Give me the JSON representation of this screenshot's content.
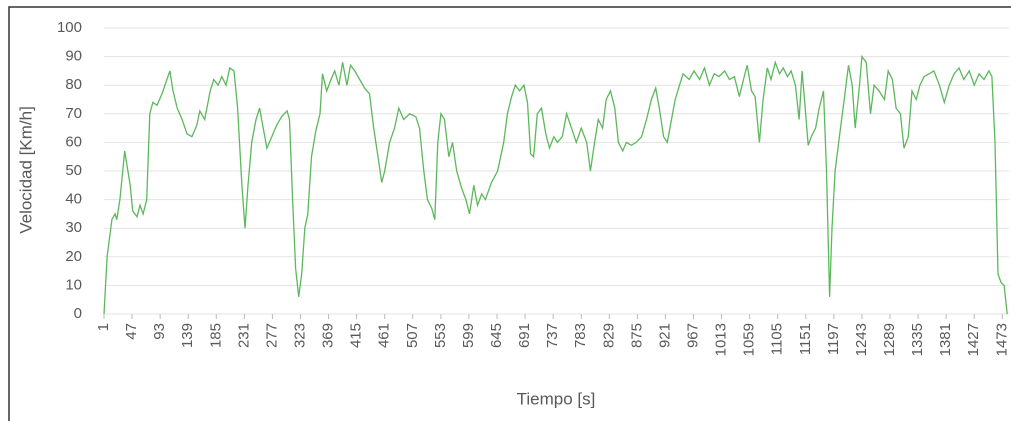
{
  "chart_data": {
    "type": "line",
    "xlabel": "Tiempo [s]",
    "ylabel": "Velocidad [Km/h]",
    "series": [
      {
        "name": "Velocidad",
        "color": "#5cb85c",
        "x": [
          1,
          6,
          14,
          19,
          22,
          27,
          35,
          44,
          48,
          55,
          60,
          65,
          71,
          76,
          81,
          88,
          96,
          104,
          109,
          114,
          121,
          129,
          137,
          145,
          153,
          158,
          166,
          175,
          181,
          188,
          194,
          201,
          207,
          214,
          220,
          227,
          232,
          237,
          243,
          250,
          256,
          261,
          268,
          276,
          284,
          292,
          301,
          305,
          310,
          315,
          320,
          325,
          330,
          335,
          341,
          348,
          355,
          359,
          366,
          373,
          379,
          386,
          392,
          399,
          405,
          412,
          420,
          428,
          436,
          443,
          450,
          456,
          461,
          469,
          477,
          484,
          492,
          502,
          512,
          518,
          525,
          531,
          538,
          543,
          548,
          553,
          559,
          566,
          572,
          579,
          587,
          594,
          600,
          607,
          613,
          620,
          626,
          636,
          646,
          656,
          662,
          669,
          675,
          682,
          689,
          695,
          700,
          705,
          711,
          718,
          725,
          731,
          738,
          744,
          752,
          759,
          767,
          775,
          783,
          792,
          798,
          805,
          811,
          818,
          824,
          831,
          838,
          844,
          851,
          857,
          865,
          873,
          882,
          890,
          898,
          905,
          911,
          918,
          924,
          931,
          937,
          944,
          950,
          960,
          968,
          977,
          985,
          993,
          1001,
          1009,
          1018,
          1026,
          1034,
          1042,
          1049,
          1055,
          1062,
          1068,
          1075,
          1081,
          1088,
          1094,
          1101,
          1108,
          1114,
          1121,
          1127,
          1134,
          1140,
          1145,
          1150,
          1155,
          1160,
          1167,
          1173,
          1180,
          1185,
          1190,
          1194,
          1199,
          1206,
          1214,
          1221,
          1227,
          1232,
          1239,
          1243,
          1250,
          1257,
          1263,
          1271,
          1280,
          1286,
          1293,
          1299,
          1306,
          1312,
          1319,
          1325,
          1332,
          1338,
          1345,
          1353,
          1361,
          1370,
          1378,
          1386,
          1394,
          1402,
          1410,
          1419,
          1427,
          1435,
          1443,
          1451,
          1456,
          1461,
          1466,
          1471,
          1476,
          1481
        ],
        "values": [
          0,
          20,
          33,
          35,
          33,
          40,
          57,
          45,
          36,
          34,
          38,
          35,
          40,
          70,
          74,
          73,
          77,
          82,
          85,
          78,
          72,
          68,
          63,
          62,
          66,
          71,
          68,
          78,
          82,
          80,
          83,
          80,
          86,
          85,
          72,
          45,
          30,
          45,
          60,
          68,
          72,
          66,
          58,
          62,
          66,
          69,
          71,
          68,
          40,
          16,
          6,
          14,
          30,
          35,
          55,
          64,
          70,
          84,
          78,
          82,
          85,
          80,
          88,
          80,
          87,
          85,
          82,
          79,
          77,
          65,
          55,
          46,
          50,
          60,
          65,
          72,
          68,
          70,
          69,
          65,
          50,
          40,
          37,
          33,
          60,
          70,
          68,
          55,
          60,
          50,
          44,
          40,
          35,
          45,
          38,
          42,
          40,
          46,
          50,
          60,
          70,
          76,
          80,
          78,
          80,
          74,
          56,
          55,
          70,
          72,
          63,
          58,
          62,
          60,
          62,
          70,
          65,
          60,
          65,
          60,
          50,
          60,
          68,
          65,
          75,
          78,
          72,
          60,
          57,
          60,
          59,
          60,
          62,
          68,
          75,
          79,
          72,
          62,
          60,
          68,
          75,
          80,
          84,
          82,
          85,
          82,
          86,
          80,
          84,
          83,
          85,
          82,
          83,
          76,
          82,
          87,
          78,
          76,
          60,
          75,
          86,
          82,
          88,
          84,
          86,
          83,
          85,
          80,
          68,
          85,
          72,
          59,
          62,
          65,
          72,
          78,
          50,
          6,
          30,
          50,
          62,
          75,
          87,
          80,
          65,
          80,
          90,
          88,
          70,
          80,
          78,
          75,
          85,
          82,
          72,
          70,
          58,
          62,
          78,
          75,
          80,
          83,
          84,
          85,
          80,
          74,
          80,
          84,
          86,
          82,
          85,
          80,
          84,
          82,
          85,
          83,
          60,
          14,
          11,
          10,
          0
        ]
      }
    ],
    "xlim": [
      1,
      1484
    ],
    "xticks": [
      1,
      47,
      93,
      139,
      185,
      231,
      277,
      323,
      369,
      415,
      461,
      507,
      553,
      599,
      645,
      691,
      737,
      783,
      829,
      875,
      921,
      967,
      1013,
      1059,
      1105,
      1151,
      1197,
      1243,
      1289,
      1335,
      1381,
      1427,
      1473
    ],
    "ylim": [
      0,
      100
    ],
    "yticks": [
      0,
      10,
      20,
      30,
      40,
      50,
      60,
      70,
      80,
      90,
      100
    ],
    "grid": true
  }
}
